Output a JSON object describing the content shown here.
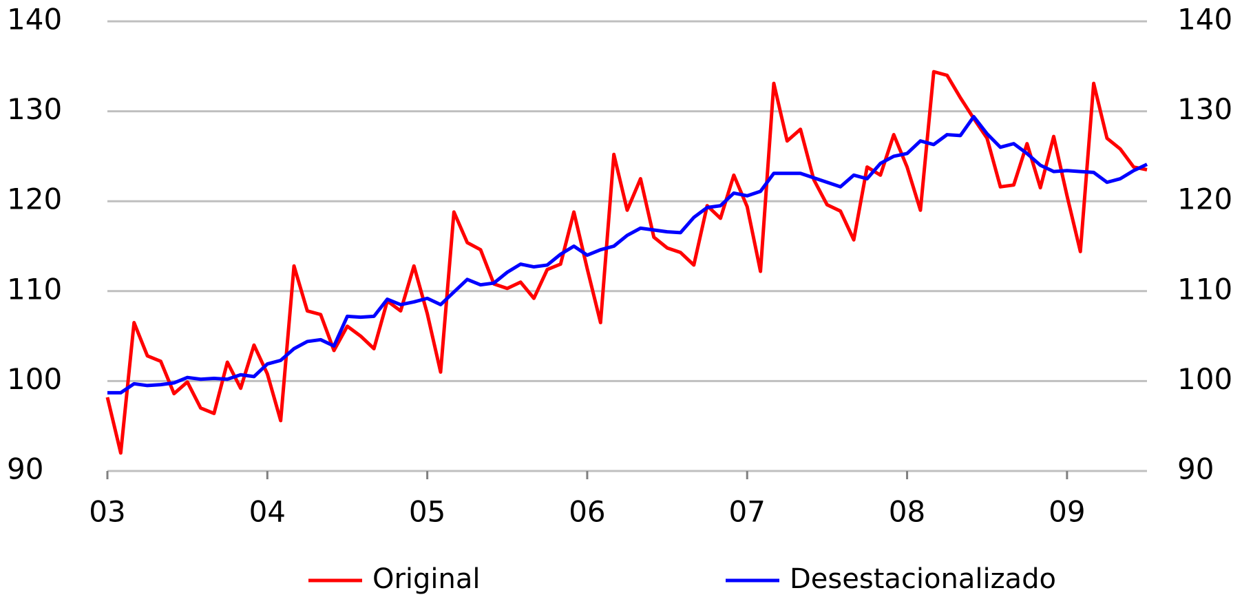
{
  "chart_data": {
    "type": "line",
    "categories": [
      "03",
      null,
      null,
      null,
      null,
      null,
      null,
      null,
      null,
      null,
      null,
      null,
      "04",
      null,
      null,
      null,
      null,
      null,
      null,
      null,
      null,
      null,
      null,
      null,
      "05",
      null,
      null,
      null,
      null,
      null,
      null,
      null,
      null,
      null,
      null,
      null,
      "06",
      null,
      null,
      null,
      null,
      null,
      null,
      null,
      null,
      null,
      null,
      null,
      "07",
      null,
      null,
      null,
      null,
      null,
      null,
      null,
      null,
      null,
      null,
      null,
      "08",
      null,
      null,
      null,
      null,
      null,
      null,
      null,
      null,
      null,
      null,
      null,
      "09",
      null,
      null,
      null,
      null,
      null,
      null
    ],
    "series": [
      {
        "name": "Original",
        "color": "#ff0000",
        "values": [
          98.2,
          92,
          106.5,
          102.8,
          102.2,
          98.6,
          99.9,
          97,
          96.4,
          102.1,
          99.2,
          104,
          100.8,
          95.6,
          112.8,
          107.8,
          107.4,
          103.4,
          106.1,
          105,
          103.6,
          108.9,
          107.8,
          112.8,
          107.5,
          101,
          118.8,
          115.4,
          114.6,
          110.8,
          110.3,
          111,
          109.2,
          112.4,
          113,
          118.8,
          112.5,
          106.5,
          125.2,
          119,
          122.5,
          116,
          114.8,
          114.3,
          112.9,
          119.5,
          118.1,
          122.9,
          119.4,
          112.2,
          133.1,
          126.7,
          128,
          122.4,
          119.6,
          118.9,
          115.7,
          123.8,
          122.9,
          127.4,
          123.8,
          119,
          134.4,
          134,
          131.5,
          129.2,
          127,
          121.6,
          121.8,
          126.4,
          121.5,
          127.2,
          120.6,
          114.4,
          133.1,
          127,
          125.8,
          123.8,
          123.5
        ]
      },
      {
        "name": "Desestacionalizado",
        "color": "#0000ff",
        "values": [
          98.7,
          98.7,
          99.7,
          99.5,
          99.6,
          99.8,
          100.4,
          100.2,
          100.3,
          100.2,
          100.7,
          100.5,
          101.9,
          102.3,
          103.6,
          104.4,
          104.6,
          103.9,
          107.2,
          107.1,
          107.2,
          109.1,
          108.5,
          108.8,
          109.2,
          108.5,
          109.9,
          111.3,
          110.7,
          110.9,
          112.1,
          113,
          112.7,
          112.9,
          114.1,
          115,
          114,
          114.6,
          115,
          116.2,
          117,
          116.8,
          116.6,
          116.5,
          118.2,
          119.3,
          119.5,
          120.9,
          120.6,
          121.1,
          123.1,
          123.1,
          123.1,
          122.6,
          122.1,
          121.6,
          122.9,
          122.5,
          124.2,
          125,
          125.3,
          126.7,
          126.3,
          127.4,
          127.3,
          129.4,
          127.5,
          126,
          126.4,
          125.3,
          124,
          123.3,
          123.4,
          123.3,
          123.2,
          122.1,
          122.5,
          123.4,
          124.1
        ]
      }
    ],
    "ylim": [
      90,
      140
    ],
    "yticks": [
      90,
      100,
      110,
      120,
      130,
      140
    ],
    "grid": true
  }
}
